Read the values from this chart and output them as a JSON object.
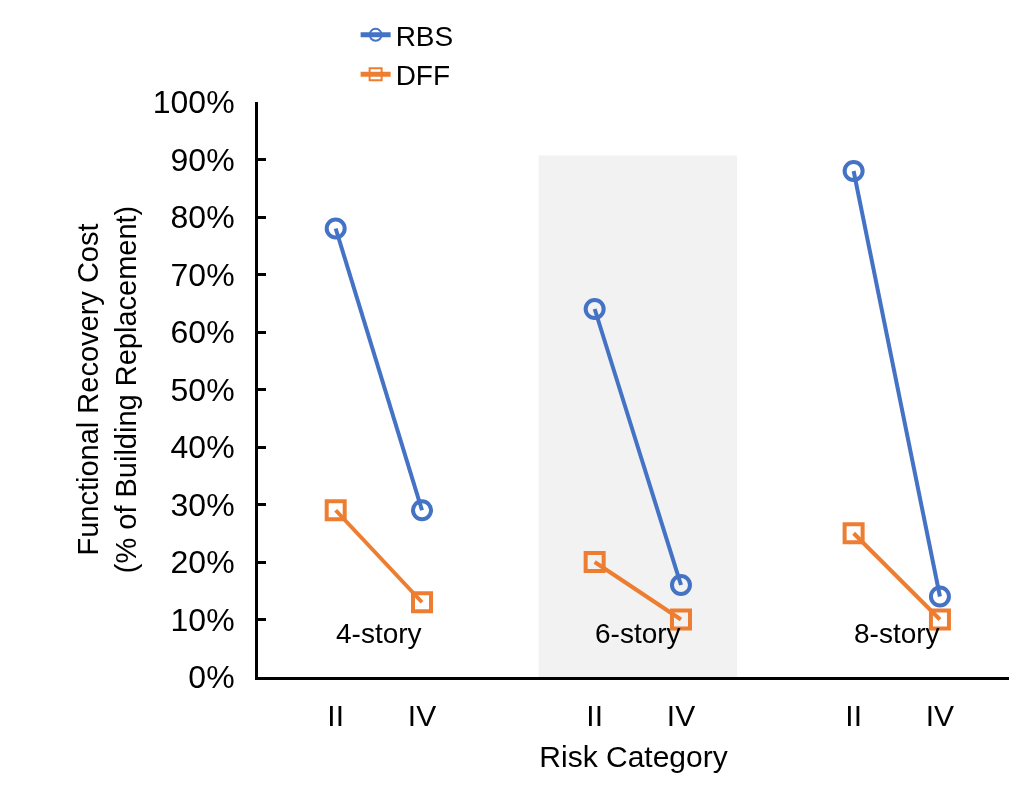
{
  "chart_data": {
    "type": "line",
    "xlabel": "Risk Category",
    "ylabel": "Functional Recovery Cost\n(% of Building Replacement)",
    "categories": [
      "II",
      "IV",
      null,
      "II",
      "IV",
      null,
      "II",
      "IV"
    ],
    "ylim": [
      0,
      100
    ],
    "yticks": [
      {
        "value": 0,
        "label": "0%"
      },
      {
        "value": 10,
        "label": "10%"
      },
      {
        "value": 20,
        "label": "20%"
      },
      {
        "value": 30,
        "label": "30%"
      },
      {
        "value": 40,
        "label": "40%"
      },
      {
        "value": 50,
        "label": "50%"
      },
      {
        "value": 60,
        "label": "60%"
      },
      {
        "value": 70,
        "label": "70%"
      },
      {
        "value": 80,
        "label": "80%"
      },
      {
        "value": 90,
        "label": "90%"
      },
      {
        "value": 100,
        "label": "100%"
      }
    ],
    "series": [
      {
        "name": "RBS",
        "color": "#4472c4",
        "marker": "circle",
        "values": [
          78,
          29,
          null,
          64,
          16,
          null,
          88,
          14
        ]
      },
      {
        "name": "DFF",
        "color": "#ed7d31",
        "marker": "square",
        "values": [
          29,
          13,
          null,
          20,
          10,
          null,
          25,
          10
        ]
      }
    ],
    "annotations": [
      "4-story",
      "6-story",
      "8-story"
    ],
    "legend": "top",
    "grid": false,
    "line_style": "solid"
  }
}
